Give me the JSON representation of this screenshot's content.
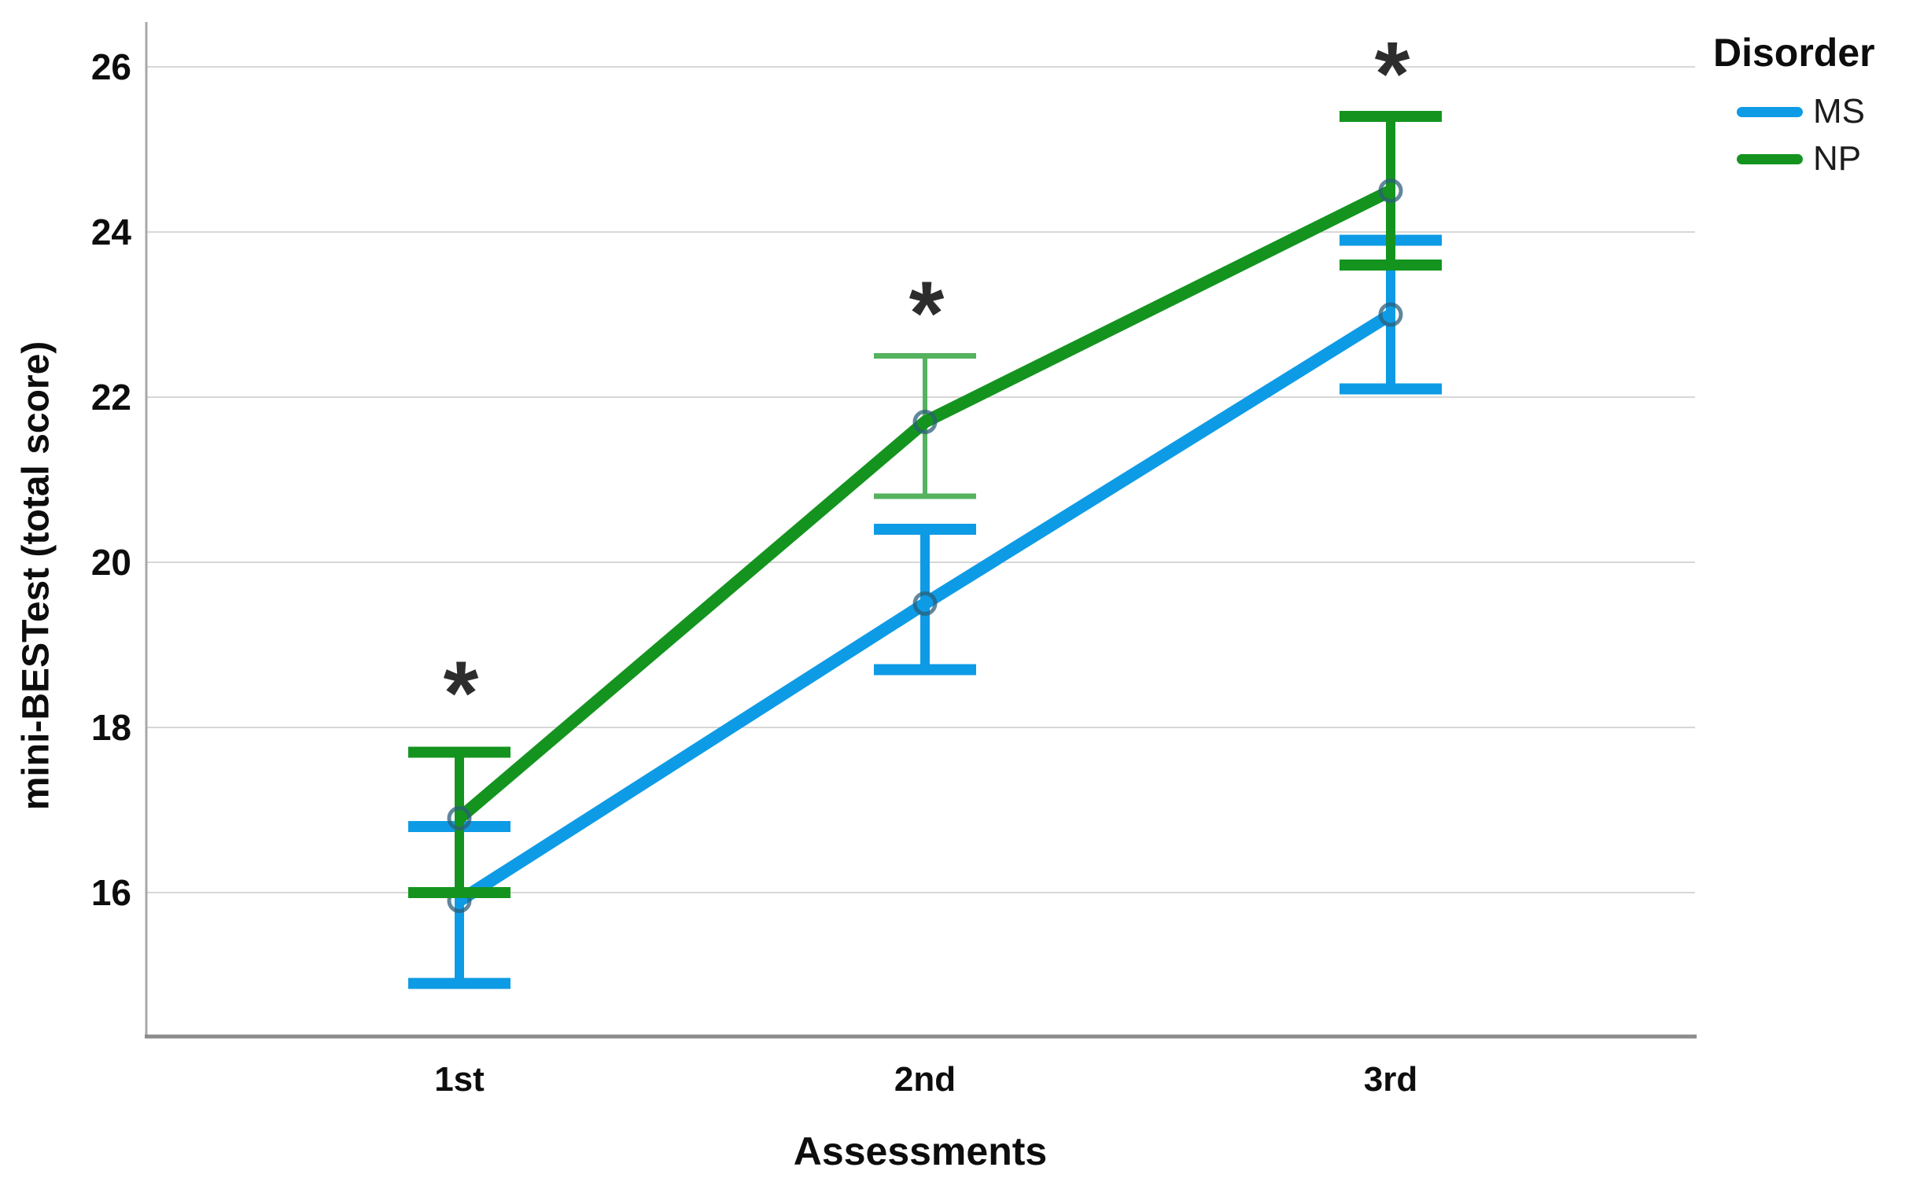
{
  "chart_data": {
    "type": "line",
    "title": "",
    "xlabel": "Assessments",
    "ylabel": "mini-BESTest (total score)",
    "categories": [
      "1st",
      "2nd",
      "3rd"
    ],
    "yticks": [
      16,
      18,
      20,
      22,
      24,
      26
    ],
    "ylim": [
      14.3,
      26.6
    ],
    "grid": "horizontal-only",
    "legend": {
      "title": "Disorder",
      "position": "top-right-outside",
      "entries": [
        {
          "label": "MS",
          "color": "#0e9be6"
        },
        {
          "label": "NP",
          "color": "#14941f"
        }
      ]
    },
    "series": [
      {
        "name": "MS",
        "color": "#0e9be6",
        "values": [
          15.9,
          19.5,
          23.0
        ],
        "ci_low": [
          14.9,
          18.7,
          22.1
        ],
        "ci_high": [
          16.8,
          20.4,
          23.9
        ],
        "error_styles": [
          "bold",
          "bold",
          "bold"
        ]
      },
      {
        "name": "NP",
        "color": "#14941f",
        "values": [
          16.9,
          21.7,
          24.5
        ],
        "ci_low": [
          16.0,
          20.8,
          23.6
        ],
        "ci_high": [
          17.7,
          22.5,
          25.4
        ],
        "error_styles": [
          "bold",
          "light",
          "bold"
        ]
      }
    ],
    "annotations": [
      {
        "marker": "*",
        "category": "1st",
        "y": 18.6
      },
      {
        "marker": "*",
        "category": "2nd",
        "y": 23.2
      },
      {
        "marker": "*",
        "category": "3rd",
        "y": 26.1
      }
    ],
    "colors": {
      "grid": "#d7d7d7",
      "y_axis": "#a8a8a8",
      "x_axis": "#8c8c8c",
      "tick_text": "#0d0d0d",
      "annotation": "#2d2d2d",
      "marker_ring": "#2b5f79",
      "light_error_green": "#55b25f"
    }
  }
}
